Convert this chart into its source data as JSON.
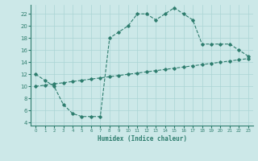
{
  "xlabel": "Humidex (Indice chaleur)",
  "line1_x": [
    0,
    1,
    2,
    3,
    4,
    5,
    6,
    7,
    8,
    9,
    10,
    11,
    12,
    13,
    14,
    15,
    16,
    17,
    18,
    19,
    20,
    21,
    22,
    23
  ],
  "line1_y": [
    12,
    11,
    10,
    7,
    5.5,
    5,
    5,
    5,
    18,
    19,
    20,
    22,
    22,
    21,
    22,
    23,
    22,
    21,
    17,
    17,
    17,
    17,
    16,
    15
  ],
  "line2_x": [
    0,
    1,
    2,
    3,
    4,
    5,
    6,
    7,
    8,
    9,
    10,
    11,
    12,
    13,
    14,
    15,
    16,
    17,
    18,
    19,
    20,
    21,
    22,
    23
  ],
  "line2_y": [
    10,
    10.2,
    10.4,
    10.6,
    10.8,
    11.0,
    11.2,
    11.4,
    11.6,
    11.8,
    12.0,
    12.2,
    12.4,
    12.6,
    12.8,
    13.0,
    13.2,
    13.4,
    13.6,
    13.8,
    14.0,
    14.2,
    14.4,
    14.6
  ],
  "line_color": "#2e7d6e",
  "bg_color": "#cce8e8",
  "grid_color": "#aad4d4",
  "xlim": [
    -0.5,
    23.5
  ],
  "ylim": [
    3.5,
    23.5
  ],
  "yticks": [
    4,
    6,
    8,
    10,
    12,
    14,
    16,
    18,
    20,
    22
  ],
  "xticks": [
    0,
    1,
    2,
    3,
    4,
    5,
    6,
    7,
    8,
    9,
    10,
    11,
    12,
    13,
    14,
    15,
    16,
    17,
    18,
    19,
    20,
    21,
    22,
    23
  ]
}
